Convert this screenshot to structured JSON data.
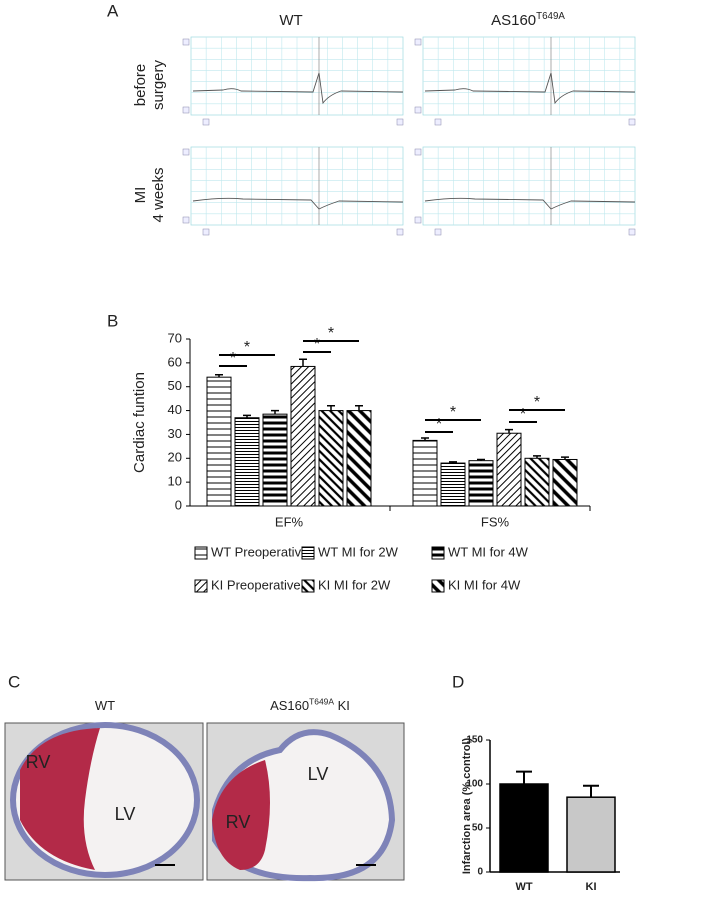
{
  "figure": {
    "panel_labels": [
      "A",
      "B",
      "C",
      "D"
    ],
    "ecg": {
      "columns": [
        {
          "base": "WT"
        },
        {
          "base": "AS160",
          "sup": "T649A"
        }
      ],
      "rows": [
        [
          "before",
          "surgery"
        ],
        [
          "MI",
          "4 weeks"
        ]
      ]
    },
    "histology": {
      "titles": [
        {
          "base": "WT"
        },
        {
          "base": "AS160",
          "sup": "T649A",
          "tail": " KI"
        }
      ],
      "labels": [
        [
          "RV",
          "LV"
        ],
        [
          "RV",
          "LV"
        ]
      ]
    }
  },
  "chart_data": [
    {
      "type": "bar",
      "ylabel": "Cardiac funtion",
      "categories": [
        "EF%",
        "FS%"
      ],
      "series": [
        {
          "name": "WT Preoperative",
          "color": "#000000",
          "hatch": "horizontal",
          "values": [
            54,
            27.5
          ],
          "errors": [
            1,
            1
          ]
        },
        {
          "name": "WT MI for 2W",
          "color": "#000000",
          "hatch": "horizontal-dense",
          "values": [
            37,
            18
          ],
          "errors": [
            1,
            0.5
          ]
        },
        {
          "name": "WT MI for 4W",
          "color": "#000000",
          "hatch": "horizontal-thick",
          "values": [
            38.5,
            19
          ],
          "errors": [
            1.5,
            0.5
          ]
        },
        {
          "name": "KI Preoperative",
          "color": "#000000",
          "hatch": "diagonal-thin",
          "values": [
            58.5,
            30.5
          ],
          "errors": [
            3,
            1.5
          ]
        },
        {
          "name": "KI MI for 2W",
          "color": "#000000",
          "hatch": "diagonal",
          "values": [
            40,
            20
          ],
          "errors": [
            2,
            1
          ]
        },
        {
          "name": "KI MI for 4W",
          "color": "#000000",
          "hatch": "diagonal-thick",
          "values": [
            40,
            19.5
          ],
          "errors": [
            2,
            1
          ]
        }
      ],
      "significance": [
        "*",
        "*",
        "*",
        "*",
        "*",
        "*",
        "*",
        "*"
      ],
      "ylim": [
        0,
        70
      ],
      "yticks": [
        0,
        10,
        20,
        30,
        40,
        50,
        60,
        70
      ]
    },
    {
      "type": "bar",
      "ylabel": "Infarction area (% control)",
      "categories": [
        "WT",
        "KI"
      ],
      "values": [
        100,
        85
      ],
      "errors": [
        14,
        13
      ],
      "colors": [
        "#000000",
        "#c8c8c8"
      ],
      "ylim": [
        0,
        150
      ],
      "yticks": [
        0,
        50,
        100,
        150
      ]
    }
  ]
}
